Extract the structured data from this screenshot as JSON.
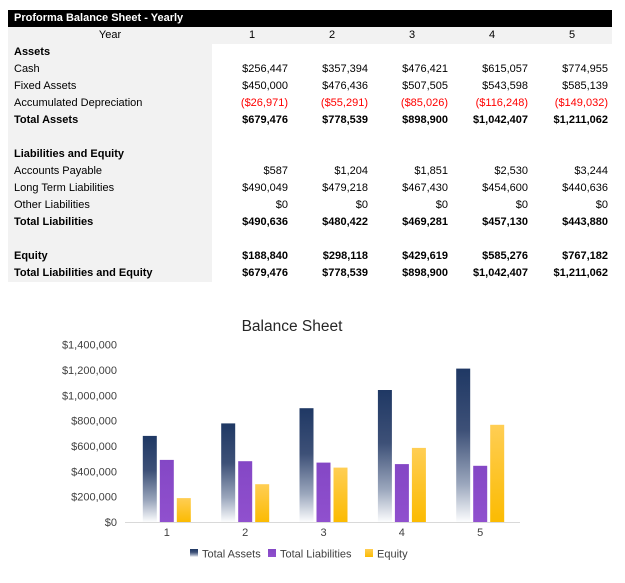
{
  "sheet": {
    "title": "Proforma Balance Sheet - Yearly",
    "year_label": "Year",
    "year_columns": [
      "1",
      "2",
      "3",
      "4",
      "5"
    ],
    "rows": [
      {
        "label": "Assets",
        "style": "section",
        "values": [
          "",
          "",
          "",
          "",
          ""
        ]
      },
      {
        "label": "Cash",
        "style": "normal",
        "values": [
          "$256,447",
          "$357,394",
          "$476,421",
          "$615,057",
          "$774,955"
        ]
      },
      {
        "label": "Fixed Assets",
        "style": "normal",
        "values": [
          "$450,000",
          "$476,436",
          "$507,505",
          "$543,598",
          "$585,139"
        ]
      },
      {
        "label": "Accumulated Depreciation",
        "style": "negative",
        "values": [
          "($26,971)",
          "($55,291)",
          "($85,026)",
          "($116,248)",
          "($149,032)"
        ]
      },
      {
        "label": "Total Assets",
        "style": "total",
        "values": [
          "$679,476",
          "$778,539",
          "$898,900",
          "$1,042,407",
          "$1,211,062"
        ]
      },
      {
        "label": "",
        "style": "blank",
        "values": [
          "",
          "",
          "",
          "",
          ""
        ]
      },
      {
        "label": "Liabilities and Equity",
        "style": "section",
        "values": [
          "",
          "",
          "",
          "",
          ""
        ]
      },
      {
        "label": "Accounts Payable",
        "style": "normal",
        "values": [
          "$587",
          "$1,204",
          "$1,851",
          "$2,530",
          "$3,244"
        ]
      },
      {
        "label": "Long Term Liabilities",
        "style": "normal",
        "values": [
          "$490,049",
          "$479,218",
          "$467,430",
          "$454,600",
          "$440,636"
        ]
      },
      {
        "label": "Other Liabilities",
        "style": "normal",
        "values": [
          "$0",
          "$0",
          "$0",
          "$0",
          "$0"
        ]
      },
      {
        "label": "Total Liabilities",
        "style": "total",
        "values": [
          "$490,636",
          "$480,422",
          "$469,281",
          "$457,130",
          "$443,880"
        ]
      },
      {
        "label": "",
        "style": "blank",
        "values": [
          "",
          "",
          "",
          "",
          ""
        ]
      },
      {
        "label": "Equity",
        "style": "total",
        "values": [
          "$188,840",
          "$298,118",
          "$429,619",
          "$585,276",
          "$767,182"
        ]
      },
      {
        "label": "Total Liabilities and Equity",
        "style": "total",
        "values": [
          "$679,476",
          "$778,539",
          "$898,900",
          "$1,042,407",
          "$1,211,062"
        ]
      }
    ]
  },
  "chart_data": {
    "type": "bar",
    "title": "Balance Sheet",
    "categories": [
      "1",
      "2",
      "3",
      "4",
      "5"
    ],
    "series": [
      {
        "name": "Total Assets",
        "values": [
          679476,
          778539,
          898900,
          1042407,
          1211062
        ],
        "gradient": [
          [
            "0%",
            "#1F3864"
          ],
          [
            "40%",
            "#3D5077"
          ],
          [
            "75%",
            "#9AA6BC"
          ],
          [
            "100%",
            "#FCFDFE"
          ]
        ]
      },
      {
        "name": "Total Liabilities",
        "values": [
          490636,
          480422,
          469281,
          457130,
          443880
        ],
        "gradient": [
          [
            "0%",
            "#8447C5"
          ],
          [
            "100%",
            "#9050CE"
          ]
        ]
      },
      {
        "name": "Equity",
        "values": [
          188840,
          298118,
          429619,
          585276,
          767182
        ],
        "gradient": [
          [
            "0%",
            "#FFCE54"
          ],
          [
            "100%",
            "#FBBB02"
          ]
        ]
      }
    ],
    "ylim": [
      0,
      1400000
    ],
    "y_tick_step": 200000,
    "y_tick_labels": [
      "$0",
      "$200,000",
      "$400,000",
      "$600,000",
      "$800,000",
      "$1,000,000",
      "$1,200,000",
      "$1,400,000"
    ],
    "xlabel": "",
    "ylabel": "",
    "grid": false,
    "legend_position": "bottom"
  },
  "colors": {
    "table_header_bg": "#000000",
    "table_header_text": "#FFFFFF",
    "label_column_bg": "#F2F2F2",
    "negative_value": "#FF0000",
    "axis_line": "#D9D9D9",
    "tick_text": "#404040",
    "chart_title_text": "#262626"
  }
}
